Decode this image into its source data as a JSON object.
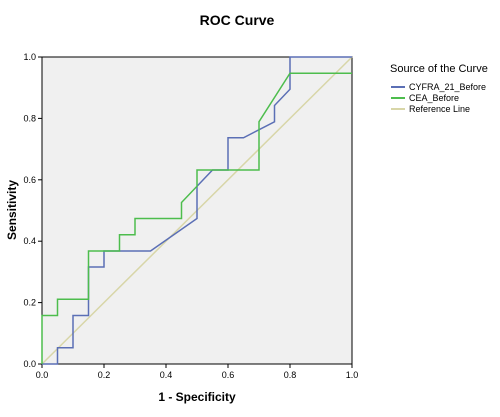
{
  "chart_data": {
    "type": "line",
    "title": "ROC Curve",
    "xlabel": "1 - Specificity",
    "ylabel": "Sensitivity",
    "xlim": [
      0,
      1
    ],
    "ylim": [
      0,
      1
    ],
    "x_ticks": [
      "0.0",
      "0.2",
      "0.4",
      "0.6",
      "0.8",
      "1.0"
    ],
    "y_ticks": [
      "0.0",
      "0.2",
      "0.4",
      "0.6",
      "0.8",
      "1.0"
    ],
    "grid": false,
    "legend_placement": "right",
    "legend_title": "Source of the Curve",
    "series": [
      {
        "name": "CYFRA_21_Before",
        "color": "#5b6fb5",
        "x": [
          0.0,
          0.05,
          0.05,
          0.1,
          0.1,
          0.15,
          0.15,
          0.2,
          0.2,
          0.35,
          0.5,
          0.5,
          0.55,
          0.6,
          0.6,
          0.65,
          0.75,
          0.75,
          0.8,
          0.8,
          1.0
        ],
        "y": [
          0.0,
          0.0,
          0.053,
          0.053,
          0.158,
          0.158,
          0.316,
          0.316,
          0.368,
          0.368,
          0.474,
          0.579,
          0.632,
          0.632,
          0.737,
          0.737,
          0.789,
          0.842,
          0.895,
          1.0,
          1.0
        ]
      },
      {
        "name": "CEA_Before",
        "color": "#4dbd4d",
        "x": [
          0.0,
          0.0,
          0.05,
          0.05,
          0.15,
          0.15,
          0.25,
          0.25,
          0.3,
          0.3,
          0.45,
          0.45,
          0.5,
          0.5,
          0.7,
          0.7,
          0.8,
          0.8,
          1.0
        ],
        "y": [
          0.0,
          0.158,
          0.158,
          0.211,
          0.211,
          0.368,
          0.368,
          0.421,
          0.421,
          0.474,
          0.474,
          0.526,
          0.579,
          0.632,
          0.632,
          0.789,
          0.947,
          0.947,
          0.947
        ]
      },
      {
        "name": "Reference Line",
        "color": "#d8d6a8",
        "x": [
          0,
          1
        ],
        "y": [
          0,
          1
        ]
      }
    ]
  }
}
